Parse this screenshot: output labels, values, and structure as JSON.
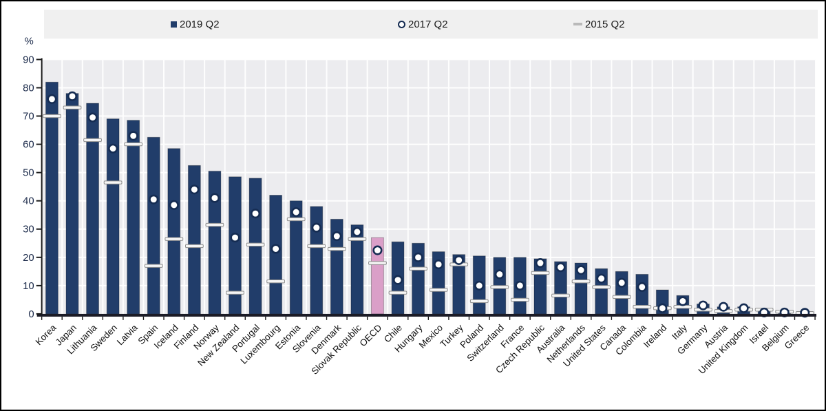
{
  "window": {
    "background": "#ffffff",
    "border_color": "#000000"
  },
  "legend": {
    "items": [
      {
        "label": "2019 Q2",
        "marker": "square-icon",
        "color": "#213d6a"
      },
      {
        "label": "2017 Q2",
        "marker": "circle-icon",
        "color": "#ffffff"
      },
      {
        "label": "2015 Q2",
        "marker": "dash-icon",
        "color": "#b9b9b9"
      }
    ]
  },
  "chart_data": {
    "type": "bar",
    "title": "",
    "xlabel": "",
    "ylabel": "%",
    "ylim": [
      0,
      90
    ],
    "yticks": [
      0,
      10,
      20,
      30,
      40,
      50,
      60,
      70,
      80,
      90
    ],
    "grid": true,
    "legend_position": "top",
    "highlight_category": "OECD",
    "categories": [
      "Korea",
      "Japan",
      "Lithuania",
      "Sweden",
      "Latvia",
      "Spain",
      "Iceland",
      "Finland",
      "Norway",
      "New Zealand",
      "Portugal",
      "Luxembourg",
      "Estonia",
      "Slovenia",
      "Denmark",
      "Slovak Republic",
      "OECD",
      "Chile",
      "Hungary",
      "Mexico",
      "Turkey",
      "Poland",
      "Switzerland",
      "France",
      "Czech Republic",
      "Australia",
      "Netherlands",
      "United States",
      "Canada",
      "Colombia",
      "Ireland",
      "Italy",
      "Germany",
      "Austria",
      "United Kingdom",
      "Israel",
      "Belgium",
      "Greece"
    ],
    "series": [
      {
        "name": "2019 Q2",
        "style": "bar",
        "values": [
          82,
          78,
          74.5,
          69,
          68.5,
          62.5,
          58.5,
          52.5,
          50.5,
          48.5,
          48,
          42,
          40,
          38,
          33.5,
          31.5,
          27,
          25.5,
          25,
          22,
          21,
          20.5,
          20,
          20,
          19.5,
          18.5,
          18,
          16,
          15,
          14,
          8.5,
          6.5,
          3.5,
          2.5,
          2.5,
          1.5,
          0.8,
          0.3
        ]
      },
      {
        "name": "2017 Q2",
        "style": "circle",
        "values": [
          76,
          77,
          69.5,
          58.5,
          63,
          40.5,
          38.5,
          44,
          41,
          27,
          35.5,
          23,
          36,
          30.5,
          27.5,
          29,
          22.5,
          12,
          20,
          17.5,
          19,
          10,
          14,
          10,
          18,
          16.5,
          15.5,
          12.5,
          11,
          9.5,
          2,
          4.5,
          3,
          2.5,
          2,
          0.5,
          0.5,
          0.4
        ]
      },
      {
        "name": "2015 Q2",
        "style": "dash",
        "values": [
          70,
          73,
          61.5,
          46.5,
          60,
          17,
          26.5,
          24,
          31.5,
          7.5,
          24.5,
          11.5,
          33.5,
          24,
          23,
          26.5,
          18,
          7.5,
          16,
          8.5,
          17.5,
          4.5,
          9.5,
          5,
          14.5,
          6.5,
          11.5,
          9.5,
          6,
          2.5,
          2,
          2.5,
          1.5,
          1,
          1.5,
          1.5,
          0.8,
          0.3
        ]
      }
    ],
    "colors": {
      "bar": "#213d6a",
      "bar_highlight": "#da9fc8",
      "point_fill": "#ffffff",
      "point_stroke": "#152c52",
      "dash_fill": "#f5f5f5",
      "dash_stroke": "#8f8f8f",
      "plot_bg": "#ececef",
      "grid": "#ffffff",
      "axis": "#1a1a1a",
      "tick_label": "#1b2a4a",
      "category_label": "#0f0f0f"
    }
  }
}
